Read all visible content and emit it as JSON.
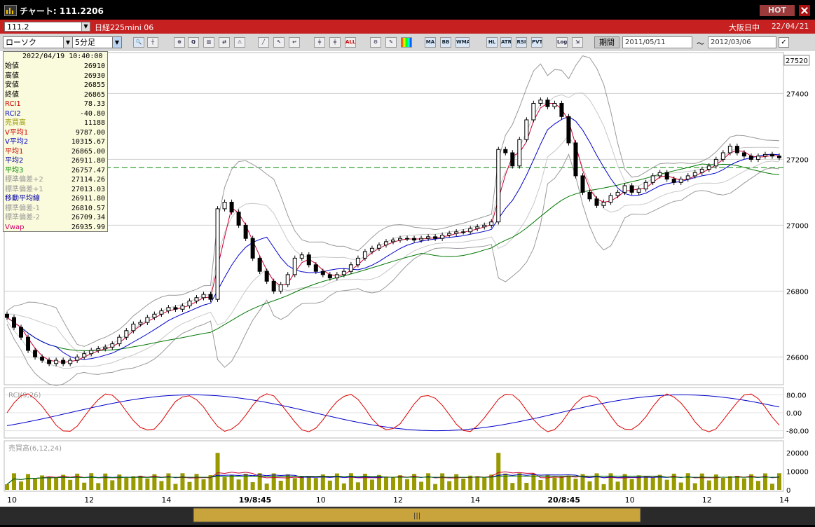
{
  "window": {
    "title": "チャート: 111.2206",
    "hot_label": "HOT"
  },
  "instrument_bar": {
    "code": "111.2",
    "name": "日経225mini 06",
    "market": "大阪日中",
    "date": "22/04/21"
  },
  "toolbar": {
    "chart_type": "ローソク",
    "timeframe": "5分足",
    "indicator_buttons": [
      "MA",
      "BB",
      "WMA",
      "HL",
      "ATR",
      "RSI",
      "PVT"
    ],
    "log_label": "Log",
    "period_label": "期間",
    "date_from": "2011/05/11",
    "date_to": "2012/03/06",
    "tilde": "〜"
  },
  "info_panel": {
    "datetime": "2022/04/19  10:40:00",
    "rows": [
      {
        "label": "始値",
        "value": "26910",
        "color": "#000000"
      },
      {
        "label": "高値",
        "value": "26930",
        "color": "#000000"
      },
      {
        "label": "安値",
        "value": "26855",
        "color": "#000000"
      },
      {
        "label": "終値",
        "value": "26865",
        "color": "#000000"
      },
      {
        "label": "RCI1",
        "value": "78.33",
        "color": "#cc0000"
      },
      {
        "label": "RCI2",
        "value": "-40.80",
        "color": "#0000cc"
      },
      {
        "label": "売買高",
        "value": "11188",
        "color": "#999900"
      },
      {
        "label": "V平均1",
        "value": "9787.00",
        "color": "#cc0000"
      },
      {
        "label": "V平均2",
        "value": "10315.67",
        "color": "#0000cc"
      },
      {
        "label": "平均1",
        "value": "26865.00",
        "color": "#cc0000"
      },
      {
        "label": "平均2",
        "value": "26911.80",
        "color": "#0000aa"
      },
      {
        "label": "平均3",
        "value": "26757.47",
        "color": "#008800"
      },
      {
        "label": "標準偏差+2",
        "value": "27114.26",
        "color": "#999999"
      },
      {
        "label": "標準偏差+1",
        "value": "27013.03",
        "color": "#999999"
      },
      {
        "label": "移動平均線",
        "value": "26911.80",
        "color": "#0000aa"
      },
      {
        "label": "標準偏差-1",
        "value": "26810.57",
        "color": "#999999"
      },
      {
        "label": "標準偏差-2",
        "value": "26709.34",
        "color": "#999999"
      },
      {
        "label": "Vwap",
        "value": "26935.99",
        "color": "#cc0066"
      }
    ]
  },
  "price_axis": {
    "ticks": [
      "27400",
      "27200",
      "27000",
      "26800",
      "26600"
    ],
    "current_price": "27520"
  },
  "rci_panel": {
    "label": "RCI(9,26)",
    "ticks": [
      "80.00",
      "0.00",
      "-80.00"
    ]
  },
  "volume_panel": {
    "label": "売買高(6,12,24)",
    "ticks": [
      "20000",
      "10000",
      "0"
    ]
  },
  "time_axis": {
    "labels": [
      "10",
      "12",
      "14",
      "19/8:45",
      "10",
      "12",
      "14",
      "20/8:45",
      "10",
      "12",
      "14"
    ]
  },
  "colors": {
    "ma1": "#cc0033",
    "ma2": "#0000cc",
    "ma3": "#007700",
    "bollinger": "#999999",
    "rci1": "#dd0000",
    "rci2": "#0000cc",
    "volume_bar": "#999900",
    "hline": "#008800"
  },
  "chart_data": {
    "type": "line",
    "ylim": [
      26520,
      27520
    ],
    "ohlc_close_path": [
      [
        0,
        26720
      ],
      [
        1,
        26690
      ],
      [
        2,
        26660
      ],
      [
        3,
        26620
      ],
      [
        4,
        26600
      ],
      [
        5,
        26590
      ],
      [
        6,
        26580
      ],
      [
        7,
        26590
      ],
      [
        8,
        26580
      ],
      [
        9,
        26590
      ],
      [
        10,
        26600
      ],
      [
        11,
        26610
      ],
      [
        12,
        26620
      ],
      [
        13,
        26625
      ],
      [
        14,
        26630
      ],
      [
        15,
        26640
      ],
      [
        16,
        26660
      ],
      [
        17,
        26680
      ],
      [
        18,
        26700
      ],
      [
        19,
        26705
      ],
      [
        20,
        26720
      ],
      [
        21,
        26730
      ],
      [
        22,
        26740
      ],
      [
        23,
        26750
      ],
      [
        24,
        26745
      ],
      [
        25,
        26755
      ],
      [
        26,
        26770
      ],
      [
        27,
        26780
      ],
      [
        28,
        26790
      ],
      [
        29,
        26775
      ],
      [
        30,
        27050
      ],
      [
        31,
        27070
      ],
      [
        32,
        27040
      ],
      [
        33,
        27000
      ],
      [
        34,
        26960
      ],
      [
        35,
        26900
      ],
      [
        36,
        26860
      ],
      [
        37,
        26830
      ],
      [
        38,
        26800
      ],
      [
        39,
        26820
      ],
      [
        40,
        26850
      ],
      [
        41,
        26900
      ],
      [
        42,
        26910
      ],
      [
        43,
        26880
      ],
      [
        44,
        26860
      ],
      [
        45,
        26850
      ],
      [
        46,
        26840
      ],
      [
        47,
        26850
      ],
      [
        48,
        26860
      ],
      [
        49,
        26880
      ],
      [
        50,
        26900
      ],
      [
        51,
        26920
      ],
      [
        52,
        26930
      ],
      [
        53,
        26940
      ],
      [
        54,
        26950
      ],
      [
        55,
        26955
      ],
      [
        56,
        26960
      ],
      [
        57,
        26960
      ],
      [
        58,
        26955
      ],
      [
        59,
        26960
      ],
      [
        60,
        26965
      ],
      [
        61,
        26960
      ],
      [
        62,
        26970
      ],
      [
        63,
        26975
      ],
      [
        64,
        26980
      ],
      [
        65,
        26980
      ],
      [
        66,
        26990
      ],
      [
        67,
        26995
      ],
      [
        68,
        27000
      ],
      [
        69,
        27010
      ],
      [
        70,
        27230
      ],
      [
        71,
        27220
      ],
      [
        72,
        27180
      ],
      [
        73,
        27260
      ],
      [
        74,
        27320
      ],
      [
        75,
        27370
      ],
      [
        76,
        27380
      ],
      [
        77,
        27360
      ],
      [
        78,
        27370
      ],
      [
        79,
        27330
      ],
      [
        80,
        27250
      ],
      [
        81,
        27150
      ],
      [
        82,
        27100
      ],
      [
        83,
        27080
      ],
      [
        84,
        27060
      ],
      [
        85,
        27070
      ],
      [
        86,
        27090
      ],
      [
        87,
        27100
      ],
      [
        88,
        27120
      ],
      [
        89,
        27100
      ],
      [
        90,
        27110
      ],
      [
        91,
        27130
      ],
      [
        92,
        27150
      ],
      [
        93,
        27160
      ],
      [
        94,
        27140
      ],
      [
        95,
        27130
      ],
      [
        96,
        27140
      ],
      [
        97,
        27150
      ],
      [
        98,
        27160
      ],
      [
        99,
        27170
      ],
      [
        100,
        27180
      ],
      [
        101,
        27200
      ],
      [
        102,
        27220
      ],
      [
        103,
        27240
      ],
      [
        104,
        27220
      ],
      [
        105,
        27210
      ],
      [
        106,
        27200
      ],
      [
        107,
        27210
      ],
      [
        108,
        27215
      ],
      [
        109,
        27210
      ],
      [
        110,
        27205
      ]
    ]
  }
}
